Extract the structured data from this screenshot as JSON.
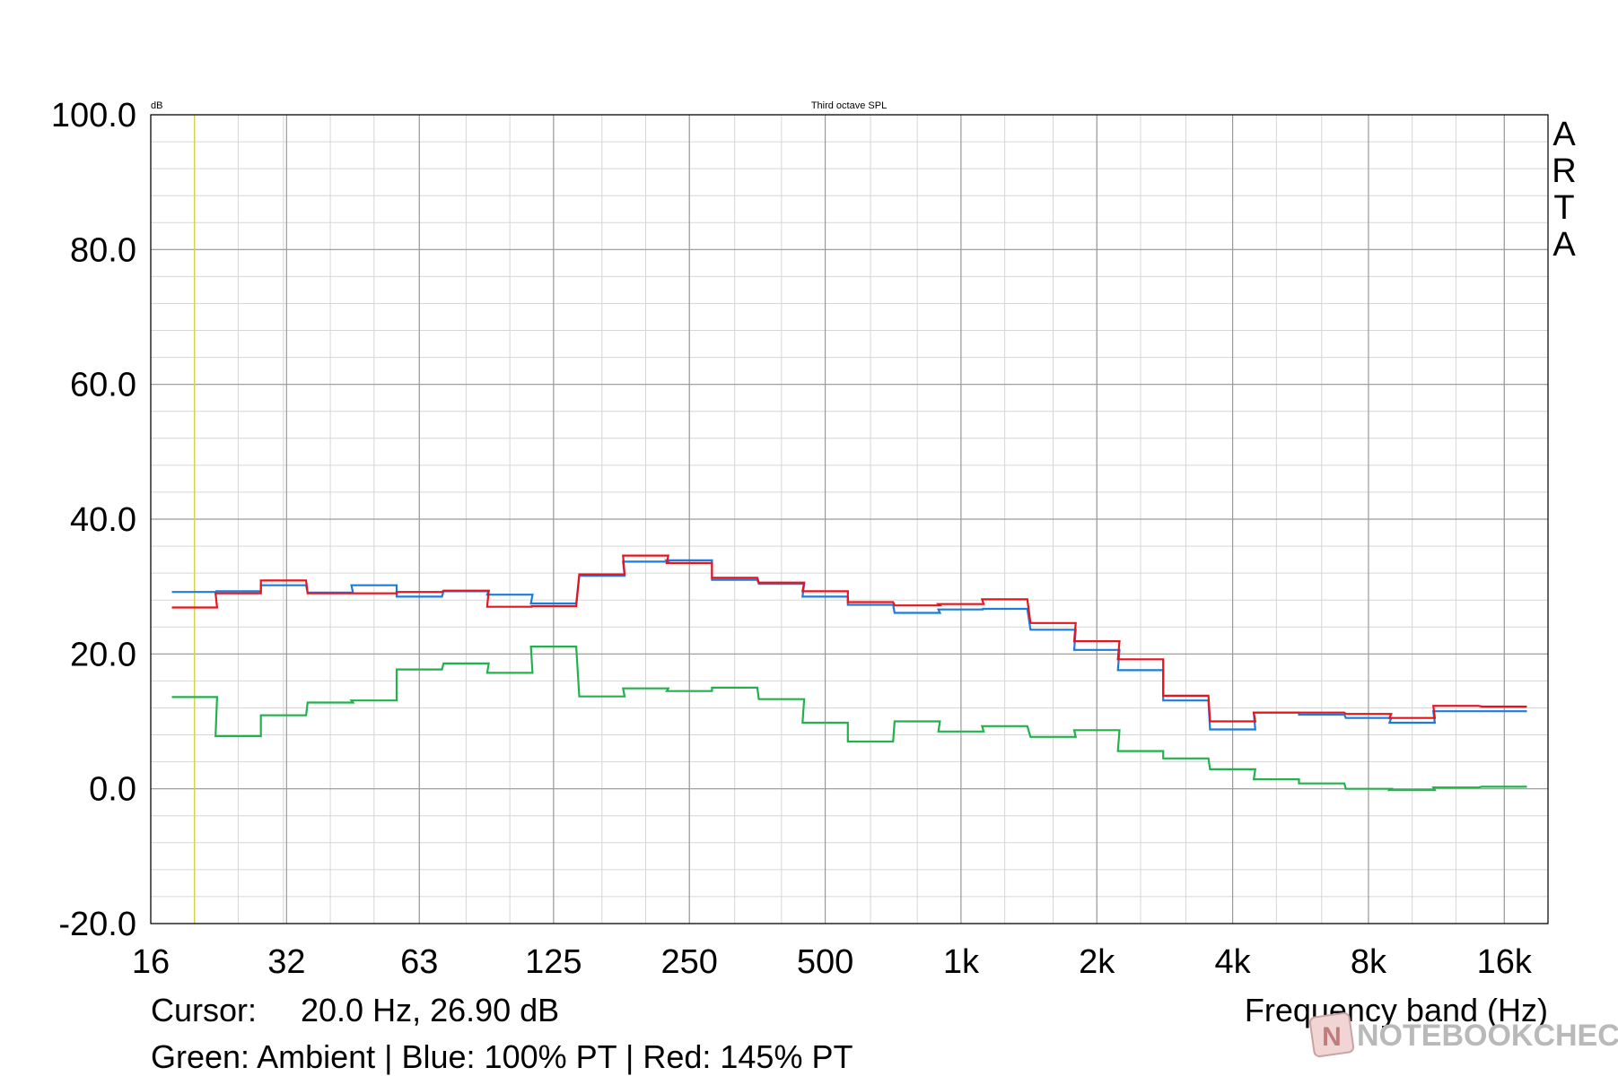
{
  "chart_data": {
    "type": "line",
    "title": "Third octave SPL",
    "ylabel": "dB",
    "xlabel": "Frequency band (Hz)",
    "ylim": [
      -20,
      100
    ],
    "y_ticks": [
      "100.0",
      "80.0",
      "60.0",
      "40.0",
      "20.0",
      "0.0",
      "-20.0"
    ],
    "y_tick_values": [
      100,
      80,
      60,
      40,
      20,
      0,
      -20
    ],
    "x_scale": "log",
    "xlim": [
      16,
      20000
    ],
    "x_ticks": [
      "16",
      "32",
      "63",
      "125",
      "250",
      "500",
      "1k",
      "2k",
      "4k",
      "8k",
      "16k"
    ],
    "x_tick_values": [
      16,
      32,
      63,
      125,
      250,
      500,
      1000,
      2000,
      4000,
      8000,
      16000
    ],
    "grid": true,
    "cursor_frequency": 20,
    "bands": [
      20,
      25,
      31.5,
      40,
      50,
      63,
      80,
      100,
      125,
      160,
      200,
      250,
      315,
      400,
      500,
      630,
      800,
      1000,
      1250,
      1600,
      2000,
      2500,
      3150,
      4000,
      5000,
      6300,
      8000,
      10000,
      12500,
      16000
    ],
    "series": [
      {
        "name": "Green: Ambient",
        "color": "#22b24c",
        "values": [
          13.6,
          7.8,
          10.9,
          12.8,
          13.1,
          17.7,
          18.6,
          17.2,
          21.1,
          13.7,
          14.9,
          14.5,
          15.0,
          13.3,
          9.8,
          7.0,
          10.0,
          8.5,
          9.3,
          7.7,
          8.7,
          5.6,
          4.5,
          2.9,
          1.4,
          0.8,
          0.0,
          -0.2,
          0.2,
          0.3
        ]
      },
      {
        "name": "Blue: 100% PT",
        "color": "#1e7bdc",
        "values": [
          29.2,
          29.3,
          30.2,
          29.1,
          30.2,
          28.5,
          29.3,
          28.8,
          27.5,
          31.6,
          33.7,
          33.9,
          31.0,
          30.4,
          28.5,
          27.3,
          26.1,
          26.6,
          26.7,
          23.6,
          20.6,
          17.6,
          13.1,
          8.8,
          11.3,
          11.0,
          10.5,
          9.8,
          11.5,
          11.5
        ]
      },
      {
        "name": "Red: 145% PT",
        "color": "#e8141c",
        "values": [
          26.9,
          29.0,
          30.9,
          29.0,
          29.0,
          29.2,
          29.4,
          27.0,
          27.1,
          31.8,
          34.6,
          33.5,
          31.3,
          30.6,
          29.3,
          27.7,
          27.2,
          27.4,
          28.1,
          24.6,
          21.9,
          19.2,
          13.8,
          10.0,
          11.3,
          11.3,
          11.1,
          10.5,
          12.3,
          12.2
        ]
      }
    ],
    "app_watermark": "ARTA"
  },
  "cursor_label": "Cursor:",
  "cursor_value": "20.0 Hz, 26.90 dB",
  "legend_text": "Green: Ambient | Blue: 100% PT | Red: 145% PT",
  "brand_text": "NOTEBOOKCHECK"
}
